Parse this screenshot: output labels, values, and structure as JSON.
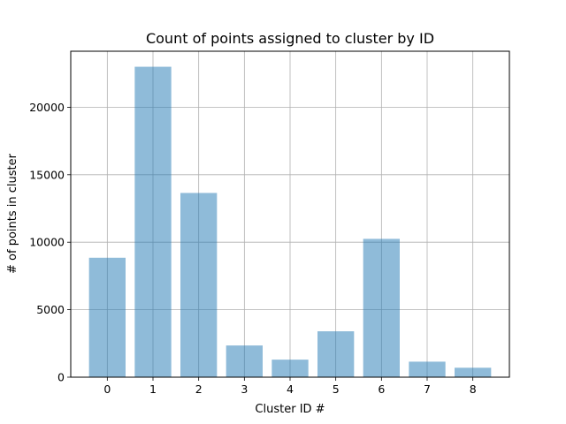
{
  "chart_data": {
    "type": "bar",
    "title": "Count of points assigned to cluster by ID",
    "xlabel": "Cluster ID #",
    "ylabel": "# of points in cluster",
    "categories": [
      "0",
      "1",
      "2",
      "3",
      "4",
      "5",
      "6",
      "7",
      "8"
    ],
    "values": [
      8850,
      23000,
      13650,
      2350,
      1300,
      3400,
      10250,
      1150,
      700
    ],
    "ylim": [
      0,
      24150
    ],
    "yticks": [
      0,
      5000,
      10000,
      15000,
      20000
    ],
    "ytick_labels": [
      "0",
      "5000",
      "10000",
      "15000",
      "20000"
    ],
    "grid": true,
    "bar_color": "#1f77b4",
    "bar_opacity": 0.5,
    "grid_color": "#b0b0b0"
  }
}
